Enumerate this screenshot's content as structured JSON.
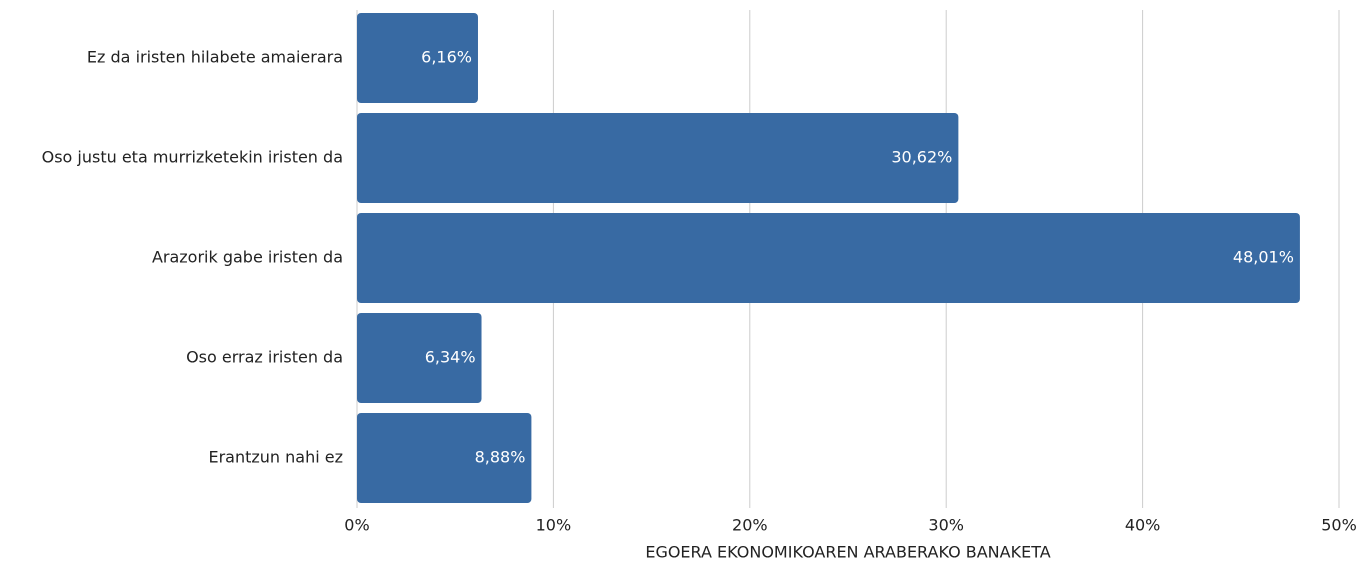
{
  "chart_data": {
    "type": "bar",
    "orientation": "horizontal",
    "categories": [
      "Ez da iristen hilabete amaierara",
      "Oso justu eta murrizketekin iristen da",
      "Arazorik gabe iristen da",
      "Oso erraz iristen da",
      "Erantzun nahi ez"
    ],
    "values": [
      6.16,
      30.62,
      48.01,
      6.34,
      8.88
    ],
    "value_labels": [
      "6,16%",
      "30,62%",
      "48,01%",
      "6,34%",
      "8,88%"
    ],
    "color": "#386aa3",
    "xlabel": "EGOERA EKONOMIKOAREN ARABERAKO BANAKETA",
    "xlim": [
      0,
      50
    ],
    "xticks": [
      {
        "value": 0,
        "label": "0%"
      },
      {
        "value": 10,
        "label": "10%"
      },
      {
        "value": 20,
        "label": "20%"
      },
      {
        "value": 30,
        "label": "30%"
      },
      {
        "value": 40,
        "label": "40%"
      },
      {
        "value": 50,
        "label": "50%"
      }
    ],
    "grid": true
  }
}
